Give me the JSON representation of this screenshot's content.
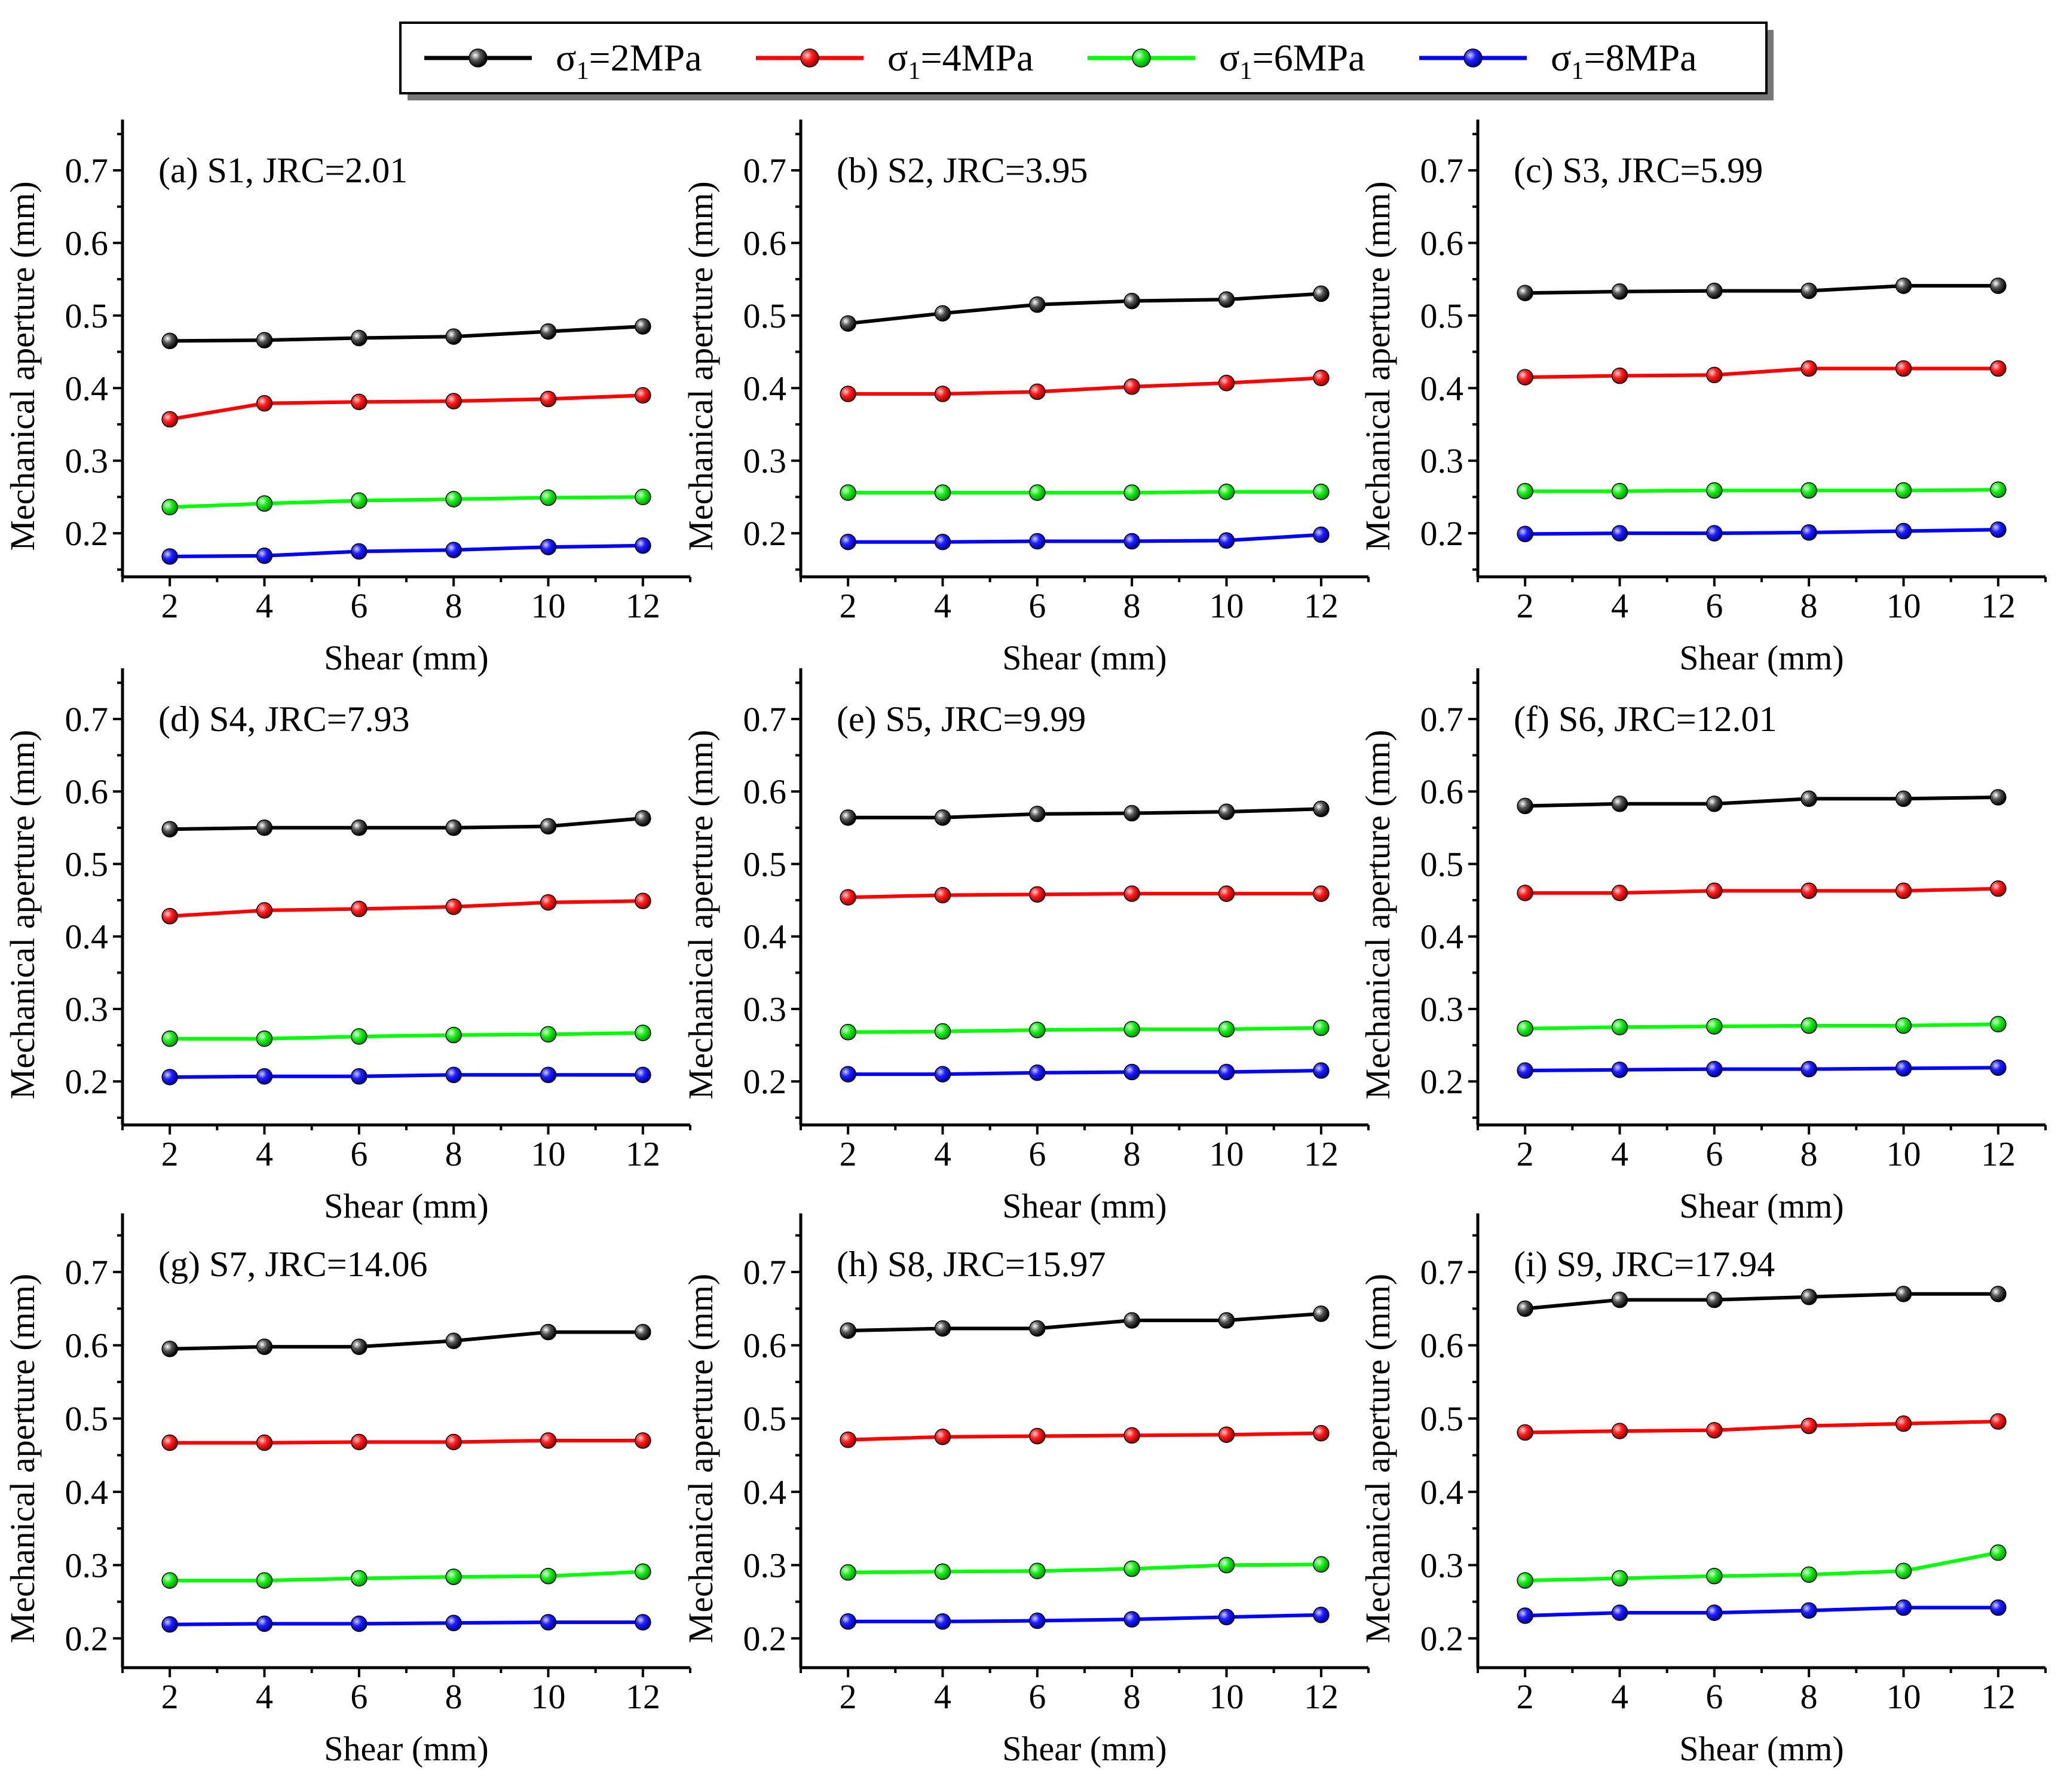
{
  "legend": {
    "items": [
      {
        "symbol": "σ",
        "sub": "1",
        "rest": "=2MPa",
        "color": "#000000"
      },
      {
        "symbol": "σ",
        "sub": "1",
        "rest": "=4MPa",
        "color": "#ff0000"
      },
      {
        "symbol": "σ",
        "sub": "1",
        "rest": "=6MPa",
        "color": "#00ff00"
      },
      {
        "symbol": "σ",
        "sub": "1",
        "rest": "=8MPa",
        "color": "#0000ff"
      }
    ]
  },
  "chart_data": [
    {
      "type": "line",
      "title": "(a) S1, JRC=2.01",
      "xlabel": "Shear (mm)",
      "ylabel": "Mechanical aperture (mm)",
      "x": [
        2,
        4,
        6,
        8,
        10,
        12
      ],
      "xticks": [
        "2",
        "4",
        "6",
        "8",
        "10",
        "12"
      ],
      "yticks": [
        "0.2",
        "0.3",
        "0.4",
        "0.5",
        "0.6",
        "0.7"
      ],
      "xlim": [
        1,
        13
      ],
      "ylim": [
        0.14,
        0.77
      ],
      "series": [
        {
          "name": "σ1=2MPa",
          "color": "#000000",
          "values": [
            0.465,
            0.466,
            0.469,
            0.471,
            0.478,
            0.485
          ]
        },
        {
          "name": "σ1=4MPa",
          "color": "#ff0000",
          "values": [
            0.357,
            0.379,
            0.381,
            0.382,
            0.385,
            0.39
          ]
        },
        {
          "name": "σ1=6MPa",
          "color": "#00ff00",
          "values": [
            0.236,
            0.241,
            0.245,
            0.247,
            0.249,
            0.25
          ]
        },
        {
          "name": "σ1=8MPa",
          "color": "#0000ff",
          "values": [
            0.168,
            0.169,
            0.175,
            0.177,
            0.181,
            0.183
          ]
        }
      ]
    },
    {
      "type": "line",
      "title": "(b) S2, JRC=3.95",
      "xlabel": "Shear (mm)",
      "ylabel": "Mechanical aperture (mm)",
      "x": [
        2,
        4,
        6,
        8,
        10,
        12
      ],
      "xticks": [
        "2",
        "4",
        "6",
        "8",
        "10",
        "12"
      ],
      "yticks": [
        "0.2",
        "0.3",
        "0.4",
        "0.5",
        "0.6",
        "0.7"
      ],
      "xlim": [
        1,
        13
      ],
      "ylim": [
        0.14,
        0.77
      ],
      "series": [
        {
          "name": "σ1=2MPa",
          "color": "#000000",
          "values": [
            0.489,
            0.503,
            0.515,
            0.52,
            0.522,
            0.53
          ]
        },
        {
          "name": "σ1=4MPa",
          "color": "#ff0000",
          "values": [
            0.392,
            0.392,
            0.395,
            0.402,
            0.407,
            0.414
          ]
        },
        {
          "name": "σ1=6MPa",
          "color": "#00ff00",
          "values": [
            0.256,
            0.256,
            0.256,
            0.256,
            0.257,
            0.257
          ]
        },
        {
          "name": "σ1=8MPa",
          "color": "#0000ff",
          "values": [
            0.188,
            0.188,
            0.189,
            0.189,
            0.19,
            0.198
          ]
        }
      ]
    },
    {
      "type": "line",
      "title": "(c) S3, JRC=5.99",
      "xlabel": "Shear (mm)",
      "ylabel": "Mechanical aperture (mm)",
      "x": [
        2,
        4,
        6,
        8,
        10,
        12
      ],
      "xticks": [
        "2",
        "4",
        "6",
        "8",
        "10",
        "12"
      ],
      "yticks": [
        "0.2",
        "0.3",
        "0.4",
        "0.5",
        "0.6",
        "0.7"
      ],
      "xlim": [
        1,
        13
      ],
      "ylim": [
        0.14,
        0.77
      ],
      "series": [
        {
          "name": "σ1=2MPa",
          "color": "#000000",
          "values": [
            0.531,
            0.533,
            0.534,
            0.534,
            0.541,
            0.541
          ]
        },
        {
          "name": "σ1=4MPa",
          "color": "#ff0000",
          "values": [
            0.415,
            0.417,
            0.418,
            0.427,
            0.427,
            0.427
          ]
        },
        {
          "name": "σ1=6MPa",
          "color": "#00ff00",
          "values": [
            0.258,
            0.258,
            0.259,
            0.259,
            0.259,
            0.26
          ]
        },
        {
          "name": "σ1=8MPa",
          "color": "#0000ff",
          "values": [
            0.199,
            0.2,
            0.2,
            0.201,
            0.203,
            0.205
          ]
        }
      ]
    },
    {
      "type": "line",
      "title": "(d) S4, JRC=7.93",
      "xlabel": "Shear (mm)",
      "ylabel": "Mechanical aperture (mm)",
      "x": [
        2,
        4,
        6,
        8,
        10,
        12
      ],
      "xticks": [
        "2",
        "4",
        "6",
        "8",
        "10",
        "12"
      ],
      "yticks": [
        "0.2",
        "0.3",
        "0.4",
        "0.5",
        "0.6",
        "0.7"
      ],
      "xlim": [
        1,
        13
      ],
      "ylim": [
        0.14,
        0.77
      ],
      "series": [
        {
          "name": "σ1=2MPa",
          "color": "#000000",
          "values": [
            0.548,
            0.55,
            0.55,
            0.55,
            0.552,
            0.563
          ]
        },
        {
          "name": "σ1=4MPa",
          "color": "#ff0000",
          "values": [
            0.428,
            0.436,
            0.438,
            0.441,
            0.447,
            0.449
          ]
        },
        {
          "name": "σ1=6MPa",
          "color": "#00ff00",
          "values": [
            0.259,
            0.259,
            0.262,
            0.264,
            0.265,
            0.267
          ]
        },
        {
          "name": "σ1=8MPa",
          "color": "#0000ff",
          "values": [
            0.206,
            0.207,
            0.207,
            0.209,
            0.209,
            0.209
          ]
        }
      ]
    },
    {
      "type": "line",
      "title": "(e) S5, JRC=9.99",
      "xlabel": "Shear (mm)",
      "ylabel": "Mechanical aperture (mm)",
      "x": [
        2,
        4,
        6,
        8,
        10,
        12
      ],
      "xticks": [
        "2",
        "4",
        "6",
        "8",
        "10",
        "12"
      ],
      "yticks": [
        "0.2",
        "0.3",
        "0.4",
        "0.5",
        "0.6",
        "0.7"
      ],
      "xlim": [
        1,
        13
      ],
      "ylim": [
        0.14,
        0.77
      ],
      "series": [
        {
          "name": "σ1=2MPa",
          "color": "#000000",
          "values": [
            0.564,
            0.564,
            0.569,
            0.57,
            0.572,
            0.576
          ]
        },
        {
          "name": "σ1=4MPa",
          "color": "#ff0000",
          "values": [
            0.454,
            0.457,
            0.458,
            0.459,
            0.459,
            0.459
          ]
        },
        {
          "name": "σ1=6MPa",
          "color": "#00ff00",
          "values": [
            0.268,
            0.269,
            0.271,
            0.272,
            0.272,
            0.274
          ]
        },
        {
          "name": "σ1=8MPa",
          "color": "#0000ff",
          "values": [
            0.21,
            0.21,
            0.212,
            0.213,
            0.213,
            0.215
          ]
        }
      ]
    },
    {
      "type": "line",
      "title": "(f) S6, JRC=12.01",
      "xlabel": "Shear (mm)",
      "ylabel": "Mechanical aperture (mm)",
      "x": [
        2,
        4,
        6,
        8,
        10,
        12
      ],
      "xticks": [
        "2",
        "4",
        "6",
        "8",
        "10",
        "12"
      ],
      "yticks": [
        "0.2",
        "0.3",
        "0.4",
        "0.5",
        "0.6",
        "0.7"
      ],
      "xlim": [
        1,
        13
      ],
      "ylim": [
        0.14,
        0.77
      ],
      "series": [
        {
          "name": "σ1=2MPa",
          "color": "#000000",
          "values": [
            0.58,
            0.583,
            0.583,
            0.59,
            0.59,
            0.592
          ]
        },
        {
          "name": "σ1=4MPa",
          "color": "#ff0000",
          "values": [
            0.46,
            0.46,
            0.463,
            0.463,
            0.463,
            0.466
          ]
        },
        {
          "name": "σ1=6MPa",
          "color": "#00ff00",
          "values": [
            0.273,
            0.275,
            0.276,
            0.277,
            0.277,
            0.279
          ]
        },
        {
          "name": "σ1=8MPa",
          "color": "#0000ff",
          "values": [
            0.215,
            0.216,
            0.217,
            0.217,
            0.218,
            0.219
          ]
        }
      ]
    },
    {
      "type": "line",
      "title": "(g) S7, JRC=14.06",
      "xlabel": "Shear (mm)",
      "ylabel": "Mechanical aperture (mm)",
      "x": [
        2,
        4,
        6,
        8,
        10,
        12
      ],
      "xticks": [
        "2",
        "4",
        "6",
        "8",
        "10",
        "12"
      ],
      "yticks": [
        "0.2",
        "0.3",
        "0.4",
        "0.5",
        "0.6",
        "0.7"
      ],
      "xlim": [
        1,
        13
      ],
      "ylim": [
        0.16,
        0.78
      ],
      "series": [
        {
          "name": "σ1=2MPa",
          "color": "#000000",
          "values": [
            0.595,
            0.598,
            0.598,
            0.606,
            0.618,
            0.618
          ]
        },
        {
          "name": "σ1=4MPa",
          "color": "#ff0000",
          "values": [
            0.467,
            0.467,
            0.468,
            0.468,
            0.47,
            0.47
          ]
        },
        {
          "name": "σ1=6MPa",
          "color": "#00ff00",
          "values": [
            0.279,
            0.279,
            0.282,
            0.284,
            0.285,
            0.291
          ]
        },
        {
          "name": "σ1=8MPa",
          "color": "#0000ff",
          "values": [
            0.219,
            0.22,
            0.22,
            0.221,
            0.222,
            0.222
          ]
        }
      ]
    },
    {
      "type": "line",
      "title": "(h) S8, JRC=15.97",
      "xlabel": "Shear (mm)",
      "ylabel": "Mechanical aperture (mm)",
      "x": [
        2,
        4,
        6,
        8,
        10,
        12
      ],
      "xticks": [
        "2",
        "4",
        "6",
        "8",
        "10",
        "12"
      ],
      "yticks": [
        "0.2",
        "0.3",
        "0.4",
        "0.5",
        "0.6",
        "0.7"
      ],
      "xlim": [
        1,
        13
      ],
      "ylim": [
        0.16,
        0.78
      ],
      "series": [
        {
          "name": "σ1=2MPa",
          "color": "#000000",
          "values": [
            0.62,
            0.623,
            0.623,
            0.634,
            0.634,
            0.643
          ]
        },
        {
          "name": "σ1=4MPa",
          "color": "#ff0000",
          "values": [
            0.471,
            0.475,
            0.476,
            0.477,
            0.478,
            0.48
          ]
        },
        {
          "name": "σ1=6MPa",
          "color": "#00ff00",
          "values": [
            0.29,
            0.291,
            0.292,
            0.295,
            0.3,
            0.301
          ]
        },
        {
          "name": "σ1=8MPa",
          "color": "#0000ff",
          "values": [
            0.223,
            0.223,
            0.224,
            0.226,
            0.229,
            0.232
          ]
        }
      ]
    },
    {
      "type": "line",
      "title": "(i) S9, JRC=17.94",
      "xlabel": "Shear (mm)",
      "ylabel": "Mechanical aperture (mm)",
      "x": [
        2,
        4,
        6,
        8,
        10,
        12
      ],
      "xticks": [
        "2",
        "4",
        "6",
        "8",
        "10",
        "12"
      ],
      "yticks": [
        "0.2",
        "0.3",
        "0.4",
        "0.5",
        "0.6",
        "0.7"
      ],
      "xlim": [
        1,
        13
      ],
      "ylim": [
        0.16,
        0.78
      ],
      "series": [
        {
          "name": "σ1=2MPa",
          "color": "#000000",
          "values": [
            0.65,
            0.662,
            0.662,
            0.666,
            0.67,
            0.67
          ]
        },
        {
          "name": "σ1=4MPa",
          "color": "#ff0000",
          "values": [
            0.481,
            0.483,
            0.484,
            0.49,
            0.493,
            0.496
          ]
        },
        {
          "name": "σ1=6MPa",
          "color": "#00ff00",
          "values": [
            0.279,
            0.282,
            0.285,
            0.287,
            0.292,
            0.317
          ]
        },
        {
          "name": "σ1=8MPa",
          "color": "#0000ff",
          "values": [
            0.231,
            0.235,
            0.235,
            0.238,
            0.242,
            0.242
          ]
        }
      ]
    }
  ]
}
